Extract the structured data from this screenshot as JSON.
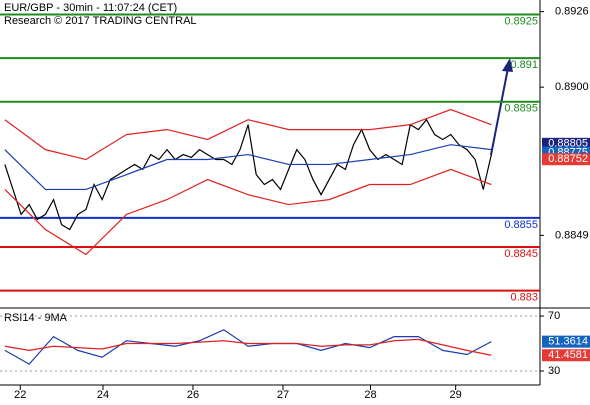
{
  "chart_data": {
    "type": "line",
    "title": "EUR/GBP - 30min - 11:07:24 (CET)",
    "subtitle": "Research © 2017 TRADING CENTRAL",
    "x": [
      0,
      1,
      2,
      3,
      4,
      5,
      6,
      7,
      8,
      9,
      10,
      11,
      12,
      13,
      14,
      15,
      16,
      17,
      18,
      19,
      20,
      21,
      22,
      23,
      24,
      25,
      26,
      27,
      28,
      29,
      30,
      31,
      32,
      33,
      34,
      35,
      36,
      37,
      38,
      39,
      40,
      41,
      42,
      43,
      44,
      45,
      46,
      47,
      48,
      49,
      50,
      51,
      52,
      53,
      54,
      55,
      56,
      57,
      58,
      59,
      60
    ],
    "series": [
      {
        "color": "#000000",
        "values": [
          0.88734,
          0.88648,
          0.88562,
          0.88596,
          0.88545,
          0.88562,
          0.88613,
          0.88527,
          0.8851,
          0.88562,
          0.88579,
          0.88665,
          0.88613,
          0.88682,
          0.88699,
          0.88717,
          0.88734,
          0.88717,
          0.88768,
          0.88751,
          0.88785,
          0.88751,
          0.88768,
          0.88758,
          0.88785,
          0.88768,
          0.88751,
          0.88751,
          0.88734,
          0.88785,
          0.88871,
          0.88699,
          0.88665,
          0.88682,
          0.88648,
          0.88717,
          0.88785,
          0.88751,
          0.88682,
          0.8863,
          0.88682,
          0.88734,
          0.88717,
          0.88802,
          0.88854,
          0.88785,
          0.88751,
          0.88768,
          0.88751,
          0.88734,
          0.88871,
          0.88854,
          0.88888,
          0.88837,
          0.8882,
          0.88837,
          0.88802,
          0.88785,
          0.88751,
          0.88648,
          0.88768
        ]
      },
      {
        "color": "#1a3fb0",
        "x": [
          0,
          5,
          10,
          15,
          20,
          25,
          30,
          35,
          40,
          45,
          50,
          55,
          60
        ],
        "values": [
          0.88785,
          0.88648,
          0.88648,
          0.88699,
          0.88751,
          0.88751,
          0.88768,
          0.88734,
          0.88734,
          0.88751,
          0.88768,
          0.88802,
          0.88785
        ]
      },
      {
        "color": "#e02020",
        "x": [
          0,
          5,
          10,
          15,
          20,
          25,
          30,
          35,
          40,
          45,
          50,
          55,
          60
        ],
        "values": [
          0.88888,
          0.88785,
          0.88751,
          0.88837,
          0.88854,
          0.8882,
          0.88888,
          0.88854,
          0.88854,
          0.88854,
          0.88871,
          0.88923,
          0.88871
        ]
      },
      {
        "color": "#e02020",
        "x": [
          0,
          5,
          10,
          15,
          20,
          25,
          30,
          35,
          40,
          45,
          50,
          55,
          60
        ],
        "values": [
          0.88648,
          0.8851,
          0.88424,
          0.88562,
          0.88613,
          0.88682,
          0.8863,
          0.88596,
          0.88613,
          0.88665,
          0.88665,
          0.88717,
          0.88665
        ]
      }
    ],
    "xlim": [
      -0.6,
      66
    ],
    "xticks": [
      {
        "value": 1.9,
        "label": "22"
      },
      {
        "value": 12.1,
        "label": "24"
      },
      {
        "value": 23.2,
        "label": "26"
      },
      {
        "value": 34.3,
        "label": "27"
      },
      {
        "value": 45.1,
        "label": "28"
      },
      {
        "value": 55.6,
        "label": "29"
      }
    ],
    "ylim": [
      0.8824,
      0.893
    ],
    "yticks": [
      0.8926,
      {
        "value": 0.89,
        "label": "0.8900"
      },
      0.8849
    ],
    "levels": [
      {
        "value": 0.8925,
        "color": "#1f8a1f"
      },
      {
        "value": 0.891,
        "color": "#1f8a1f"
      },
      {
        "value": 0.8895,
        "color": "#1f8a1f"
      },
      {
        "value": 0.8855,
        "color": "#1030c8"
      },
      {
        "value": 0.8845,
        "color": "#d81010"
      },
      {
        "value": 0.883,
        "color": "#d81010"
      }
    ],
    "price_boxes": [
      {
        "value": 0.88805,
        "color": "#1a237e"
      },
      {
        "value": 0.88775,
        "color": "#1565c0"
      },
      {
        "value": 0.88752,
        "color": "#e53935"
      }
    ],
    "rsi": {
      "label": "RSI14 - 9MA",
      "x": [
        0,
        3,
        6,
        9,
        12,
        15,
        18,
        21,
        24,
        27,
        30,
        33,
        36,
        39,
        42,
        45,
        48,
        51,
        54,
        57,
        60
      ],
      "series": [
        {
          "color": "#1a3fb0",
          "values": [
            45,
            35,
            55,
            45,
            40,
            52,
            50,
            48,
            52,
            60,
            48,
            50,
            50,
            45,
            50,
            47,
            55,
            55,
            45,
            42,
            51.3614
          ]
        },
        {
          "color": "#e02020",
          "values": [
            48,
            45,
            48,
            47,
            46,
            50,
            50,
            50,
            51,
            52,
            50,
            50,
            50,
            48,
            49,
            49,
            52,
            53,
            49,
            45,
            41.4581
          ]
        }
      ],
      "ylim": [
        19.8,
        74.4
      ],
      "yticks": [
        70,
        30
      ],
      "boxes": [
        {
          "value": 51.3614,
          "color": "#1565c0"
        },
        {
          "value": 41.4581,
          "color": "#e53935"
        }
      ]
    }
  }
}
